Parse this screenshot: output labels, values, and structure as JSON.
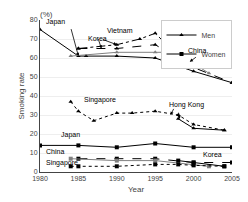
{
  "chart_data": {
    "type": "line",
    "title": "(%)",
    "x_label": "Year",
    "y_label": "Smoking rate",
    "xlim": [
      1980,
      2005
    ],
    "ylim": [
      0,
      80
    ],
    "xticks": [
      1980,
      1985,
      1990,
      1995,
      2000,
      2005
    ],
    "yticks": [
      0,
      10,
      20,
      30,
      40,
      50,
      60,
      70,
      80
    ],
    "grid": "y",
    "legend": "upper right",
    "series": [
      {
        "name": "Men",
        "color": "black",
        "line_style": "solid",
        "marker": "triangle-up",
        "x": [
          1980,
          1985,
          1986,
          1990,
          1995,
          2000,
          2005
        ],
        "values": [
          75,
          61,
          61,
          61,
          60,
          53,
          47
        ]
      },
      {
        "name": "Men",
        "color": "black",
        "line_style": "dashed",
        "marker": "triangle-up",
        "x": [
          1985,
          1990,
          1995,
          2000,
          2005
        ],
        "values": [
          65,
          65,
          67,
          55,
          47
        ]
      },
      {
        "name": "Men",
        "color": "black",
        "line_style": "dashdot",
        "marker": "triangle-up",
        "x": [
          1985,
          1990,
          1993,
          1995,
          1997,
          2000,
          2002
        ],
        "values": [
          65,
          67,
          70,
          73,
          65,
          62,
          56
        ]
      },
      {
        "name": "Men",
        "color": "gray",
        "line_style": "solid",
        "marker": "triangle-up",
        "x": [
          1984,
          1990,
          1995,
          1998,
          2000,
          2002
        ],
        "values": [
          61,
          63,
          63,
          63,
          57,
          52
        ]
      },
      {
        "name": "Men",
        "color": "black",
        "line_style": "dotted",
        "marker": "triangle-up",
        "x": [
          1984,
          1985,
          1987,
          1990,
          1992,
          1995,
          1998,
          2000,
          2004
        ],
        "values": [
          37,
          32,
          27,
          31,
          31,
          32,
          30,
          25,
          22
        ]
      },
      {
        "name": "Men",
        "color": "black",
        "line_style": "solid",
        "marker": "triangle-up",
        "x": [
          1998,
          2000,
          2004
        ],
        "values": [
          28,
          23,
          22
        ]
      },
      {
        "name": "Women",
        "color": "black",
        "line_style": "solid",
        "marker": "square",
        "x": [
          1980,
          1985,
          1990,
          1995,
          2000,
          2005
        ],
        "values": [
          14,
          14,
          13,
          15,
          13,
          13
        ]
      },
      {
        "name": "Women",
        "color": "black",
        "line_style": "dashed",
        "marker": "square",
        "x": [
          1985,
          1990,
          1995,
          2000,
          2005
        ],
        "values": [
          7,
          7,
          7,
          5,
          5
        ]
      },
      {
        "name": "Women",
        "color": "gray",
        "line_style": "solid",
        "marker": "square",
        "x": [
          1984,
          1990,
          1995,
          2000,
          2002
        ],
        "values": [
          7,
          6,
          6,
          4,
          3
        ]
      },
      {
        "name": "Women",
        "color": "black",
        "line_style": "dotted",
        "marker": "square",
        "x": [
          1984,
          1985,
          1990,
          1995,
          1998,
          2000,
          2004
        ],
        "values": [
          3,
          3,
          3,
          4,
          4,
          3.5,
          3
        ]
      },
      {
        "name": "Women",
        "color": "black",
        "line_style": "solid",
        "marker": "square",
        "x": [
          1998,
          2000,
          2004
        ],
        "values": [
          6,
          5,
          3
        ]
      }
    ],
    "annotations": [
      {
        "text": "Japan",
        "x": 1980.5,
        "y": 76
      },
      {
        "text": "Korea",
        "x": 1986,
        "y": 67.5
      },
      {
        "text": "Vietnam",
        "x": 1988.5,
        "y": 71.5
      },
      {
        "text": "China",
        "x": 1999,
        "y": 61
      },
      {
        "text": "Singapore",
        "x": 1985.5,
        "y": 35
      },
      {
        "text": "Hong Kong",
        "x": 1996.5,
        "y": 32
      },
      {
        "text": "Japan",
        "x": 1982.5,
        "y": 16.5
      },
      {
        "text": "China",
        "x": 1980.5,
        "y": 8
      },
      {
        "text": "Singapore",
        "x": 1980.5,
        "y": 1.5
      },
      {
        "text": "Korea",
        "x": 2001,
        "y": 6.5
      }
    ],
    "arrows": [
      {
        "from": [
          1984,
          76
        ],
        "to": [
          1985,
          61
        ]
      },
      {
        "from": [
          1987.5,
          71
        ],
        "to": [
          1988,
          65
        ]
      },
      {
        "from": [
          1988,
          70
        ],
        "to": [
          1990,
          67
        ]
      },
      {
        "from": [
          2000.5,
          61
        ],
        "to": [
          1999.5,
          58
        ]
      },
      {
        "from": [
          1997.5,
          34
        ],
        "to": [
          1997,
          30
        ]
      },
      {
        "from": [
          1998,
          32
        ],
        "to": [
          1998.2,
          28
        ]
      }
    ]
  }
}
